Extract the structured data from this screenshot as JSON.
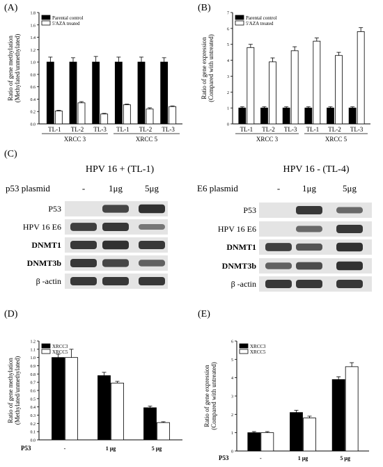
{
  "chart_data": [
    {
      "panel": "(A)",
      "type": "bar",
      "ylabel": "Ratio of gene methylation (Methylated/unmethylated)",
      "ylabel_lines": [
        "Ratio of gene methylation",
        "(Methylated/unmethylated)"
      ],
      "ylim": [
        0,
        1.8
      ],
      "yticks": [
        "0.0",
        "0.2",
        "0.4",
        "0.6",
        "0.8",
        "1.0",
        "1.2",
        "1.4",
        "1.6",
        "1.8"
      ],
      "categories": [
        "TL-1",
        "TL-2",
        "TL-3",
        "TL-1",
        "TL-2",
        "TL-3"
      ],
      "groups": [
        "XRCC 3",
        "XRCC 5"
      ],
      "series": [
        {
          "name": "Parental control",
          "color": "#000000",
          "values": [
            1.0,
            1.0,
            1.0,
            1.0,
            1.0,
            1.0
          ],
          "err": [
            0.08,
            0.07,
            0.09,
            0.08,
            0.08,
            0.07
          ]
        },
        {
          "name": "5'AZA treated",
          "color": "#ffffff",
          "values": [
            0.21,
            0.34,
            0.16,
            0.31,
            0.24,
            0.28
          ],
          "err": [
            0.01,
            0.02,
            0.01,
            0.01,
            0.02,
            0.01
          ]
        }
      ],
      "legend": "top-left"
    },
    {
      "panel": "(B)",
      "type": "bar",
      "ylabel": "Ratio of gene expression (Compared with untreated)",
      "ylabel_lines": [
        "Ratio of gene expression",
        "(Compared with untreated)"
      ],
      "ylim": [
        0,
        7
      ],
      "yticks": [
        "0",
        "1",
        "2",
        "3",
        "4",
        "5",
        "6",
        "7"
      ],
      "categories": [
        "TL-1",
        "TL-2",
        "TL-3",
        "TL-1",
        "TL-2",
        "TL-3"
      ],
      "groups": [
        "XRCC 3",
        "XRCC 5"
      ],
      "series": [
        {
          "name": "Parental control",
          "color": "#000000",
          "values": [
            1.0,
            1.0,
            1.0,
            1.0,
            1.0,
            1.0
          ],
          "err": [
            0.08,
            0.08,
            0.08,
            0.08,
            0.08,
            0.08
          ]
        },
        {
          "name": "5'AZA treated",
          "color": "#ffffff",
          "values": [
            4.8,
            3.9,
            4.6,
            5.2,
            4.3,
            5.8
          ],
          "err": [
            0.2,
            0.25,
            0.25,
            0.2,
            0.2,
            0.25
          ]
        }
      ],
      "legend": "top-left"
    },
    {
      "panel": "(D)",
      "type": "bar",
      "ylabel": "Ratio of gene methylation (Methylated/unmethylated)",
      "ylabel_lines": [
        "Ratio of gene methylation",
        "(Methylated/unmethylated)"
      ],
      "xlabel": "P53",
      "ylim": [
        0,
        1.2
      ],
      "yticks": [
        "0.0",
        "0.1",
        "0.2",
        "0.3",
        "0.4",
        "0.5",
        "0.6",
        "0.7",
        "0.8",
        "0.9",
        "1.0",
        "1.1",
        "1.2"
      ],
      "categories": [
        "-",
        "1 µg",
        "5 µg"
      ],
      "series": [
        {
          "name": "XRCC3",
          "color": "#000000",
          "values": [
            1.0,
            0.78,
            0.39
          ],
          "err": [
            0.04,
            0.04,
            0.02
          ]
        },
        {
          "name": "XRCC5",
          "color": "#ffffff",
          "values": [
            1.0,
            0.69,
            0.21
          ],
          "err": [
            0.1,
            0.02,
            0.01
          ]
        }
      ],
      "legend": "top-left"
    },
    {
      "panel": "(E)",
      "type": "bar",
      "ylabel": "Ratio of gene expression (Compared with untreated)",
      "ylabel_lines": [
        "Ratio of gene expression",
        "(Compared with untreated)"
      ],
      "xlabel": "P53",
      "ylim": [
        0,
        6
      ],
      "yticks": [
        "0",
        "1",
        "2",
        "3",
        "4",
        "5",
        "6"
      ],
      "categories": [
        "-",
        "1 µg",
        "5 µg"
      ],
      "series": [
        {
          "name": "XRCC3",
          "color": "#000000",
          "values": [
            1.0,
            2.1,
            3.9
          ],
          "err": [
            0.06,
            0.12,
            0.15
          ]
        },
        {
          "name": "XRCC5",
          "color": "#ffffff",
          "values": [
            1.0,
            1.8,
            4.6
          ],
          "err": [
            0.06,
            0.1,
            0.22
          ]
        }
      ],
      "legend": "top-left"
    }
  ],
  "panels": {
    "a": "(A)",
    "b": "(B)",
    "c": "(C)",
    "d": "(D)",
    "e": "(E)"
  },
  "blots": {
    "left_title": "HPV 16 +  (TL-1)",
    "right_title": "HPV 16 -  (TL-4)",
    "left_plasmid": "p53 plasmid",
    "right_plasmid": "E6 plasmid",
    "doses": [
      "-",
      "1μg",
      "5μg"
    ],
    "rows": [
      "P53",
      "HPV 16 E6",
      "DNMT1",
      "DNMT3b",
      "β -actin"
    ],
    "left_bands": [
      [
        0.0,
        0.8,
        0.95
      ],
      [
        0.85,
        0.9,
        0.45
      ],
      [
        0.9,
        0.95,
        0.9
      ],
      [
        0.9,
        0.8,
        0.6
      ],
      [
        0.9,
        0.9,
        0.9
      ]
    ],
    "right_bands": [
      [
        0.0,
        0.9,
        0.55
      ],
      [
        0.0,
        0.55,
        0.9
      ],
      [
        0.85,
        0.7,
        0.95
      ],
      [
        0.6,
        0.75,
        0.95
      ],
      [
        0.9,
        0.9,
        0.9
      ]
    ]
  }
}
